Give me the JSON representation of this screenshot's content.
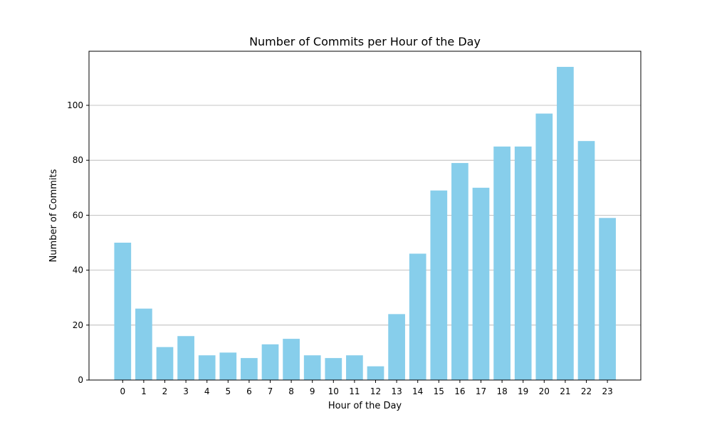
{
  "chart_data": {
    "type": "bar",
    "title": "Number of Commits per Hour of the Day",
    "xlabel": "Hour of the Day",
    "ylabel": "Number of Commits",
    "categories": [
      "0",
      "1",
      "2",
      "3",
      "4",
      "5",
      "6",
      "7",
      "8",
      "9",
      "10",
      "11",
      "12",
      "13",
      "14",
      "15",
      "16",
      "17",
      "18",
      "19",
      "20",
      "21",
      "22",
      "23"
    ],
    "values": [
      50,
      26,
      12,
      16,
      9,
      10,
      8,
      13,
      15,
      9,
      8,
      9,
      5,
      24,
      46,
      69,
      79,
      70,
      85,
      85,
      97,
      114,
      87,
      59
    ],
    "ylim": [
      0,
      120
    ],
    "yticks": [
      0,
      20,
      40,
      60,
      80,
      100
    ],
    "grid": "y-axis",
    "bar_color": "#87ceeb"
  }
}
